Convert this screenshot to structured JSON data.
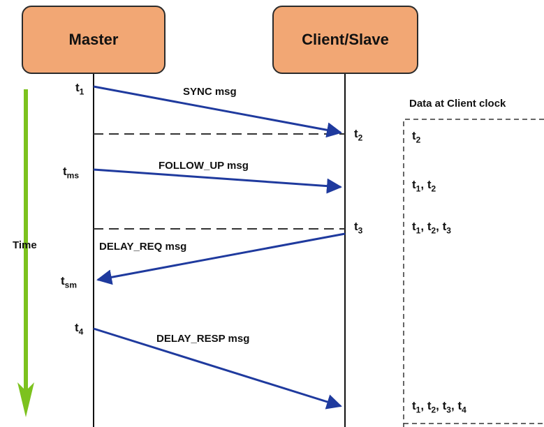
{
  "actors": {
    "master": "Master",
    "client": "Client/Slave"
  },
  "time_label": "Time",
  "data_header": "Data at Client clock",
  "messages": {
    "sync": "SYNC msg",
    "follow_up": "FOLLOW_UP msg",
    "delay_req": "DELAY_REQ msg",
    "delay_resp": "DELAY_RESP msg"
  },
  "timestamps": {
    "t1": {
      "base": "t",
      "sub": "1"
    },
    "tms": {
      "base": "t",
      "sub": "ms"
    },
    "tsm": {
      "base": "t",
      "sub": "sm"
    },
    "t4": {
      "base": "t",
      "sub": "4"
    },
    "t2": {
      "base": "t",
      "sub": "2"
    },
    "t3": {
      "base": "t",
      "sub": "3"
    }
  },
  "client_data": {
    "row1": [
      "2"
    ],
    "row2": [
      "1",
      "2"
    ],
    "row3": [
      "1",
      "2",
      "3"
    ],
    "row4": [
      "1",
      "2",
      "3",
      "4"
    ],
    "var": "t"
  },
  "colors": {
    "actor_fill": "#f2a774",
    "arrow": "#1f3a9e",
    "time_arrow": "#7cc21e",
    "dashed": "#333333"
  }
}
